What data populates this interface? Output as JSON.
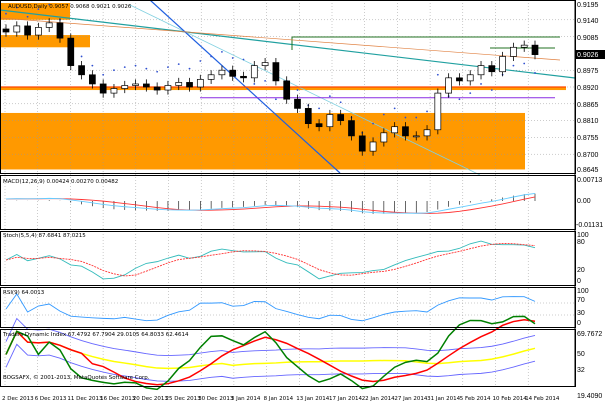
{
  "symbol_title": "AUDUSD,Daily",
  "ohlc_readout": "0.9057 0.9068 0.9021 0.9026",
  "current_price": "0.9026",
  "copyright": "BOGSAFX, © 2001-2013, MetaQuotes Software Corp.",
  "colors": {
    "zone": "#ff9900",
    "bull": "#ffffff",
    "bear": "#000000",
    "macd": "#ff3333",
    "signal": "#66ccff",
    "stoch_main": "#33bbbb",
    "stoch_signal": "#ff3333",
    "rsi": "#3399ff",
    "tdi_green": "#008000",
    "tdi_red": "#ff0000",
    "tdi_yellow": "#ffff00",
    "tdi_band": "#6666ff"
  },
  "price_axis": [
    "0.9195",
    "0.9140",
    "0.9085",
    "0.8975",
    "0.8920",
    "0.8865",
    "0.8810",
    "0.8755",
    "0.8700",
    "0.8645"
  ],
  "macd": {
    "title": "MACD(12,26,9) 0.00424 0.00270 0.00482",
    "axis": [
      "0.00713",
      "0.00",
      "-0.01131"
    ]
  },
  "stoch": {
    "title": "Stoch(5,5,4) 87.6841 87.0215",
    "axis": [
      "100",
      "80",
      "20",
      "0"
    ]
  },
  "rsi": {
    "title": "RSI(9) 64.0013",
    "axis": [
      "100",
      "70",
      "30",
      "0"
    ]
  },
  "tdi": {
    "title": "Traders Dynamic Index 67.4792 67.7904 29.0105 64.8033 62.4614",
    "axis": [
      "69.7672",
      "50",
      "32",
      "19.4090"
    ]
  },
  "date_axis": [
    "2 Dec 2013",
    "6 Dec 2013",
    "11 Dec 2013",
    "16 Dec 2013",
    "20 Dec 2013",
    "25 Dec 2013",
    "30 Dec 2013",
    "3 Jan 2014",
    "8 Jan 2014",
    "13 Jan 2014",
    "17 Jan 2014",
    "22 Jan 2014",
    "27 Jan 2014",
    "31 Jan 2014",
    "5 Feb 2014",
    "10 Feb 2014",
    "14 Feb 2014"
  ],
  "chart_data": {
    "type": "candlestick",
    "title": "AUDUSD,Daily",
    "ylim": [
      0.8645,
      0.9195
    ],
    "closes": [
      0.91,
      0.912,
      0.909,
      0.9115,
      0.913,
      0.908,
      0.899,
      0.896,
      0.893,
      0.89,
      0.8915,
      0.8925,
      0.893,
      0.892,
      0.891,
      0.8925,
      0.8935,
      0.892,
      0.8945,
      0.896,
      0.8975,
      0.8955,
      0.895,
      0.899,
      0.9,
      0.894,
      0.888,
      0.885,
      0.88,
      0.879,
      0.883,
      0.881,
      0.876,
      0.871,
      0.874,
      0.877,
      0.879,
      0.876,
      0.876,
      0.878,
      0.89,
      0.895,
      0.894,
      0.896,
      0.899,
      0.897,
      0.902,
      0.905,
      0.9057,
      0.9026
    ]
  }
}
